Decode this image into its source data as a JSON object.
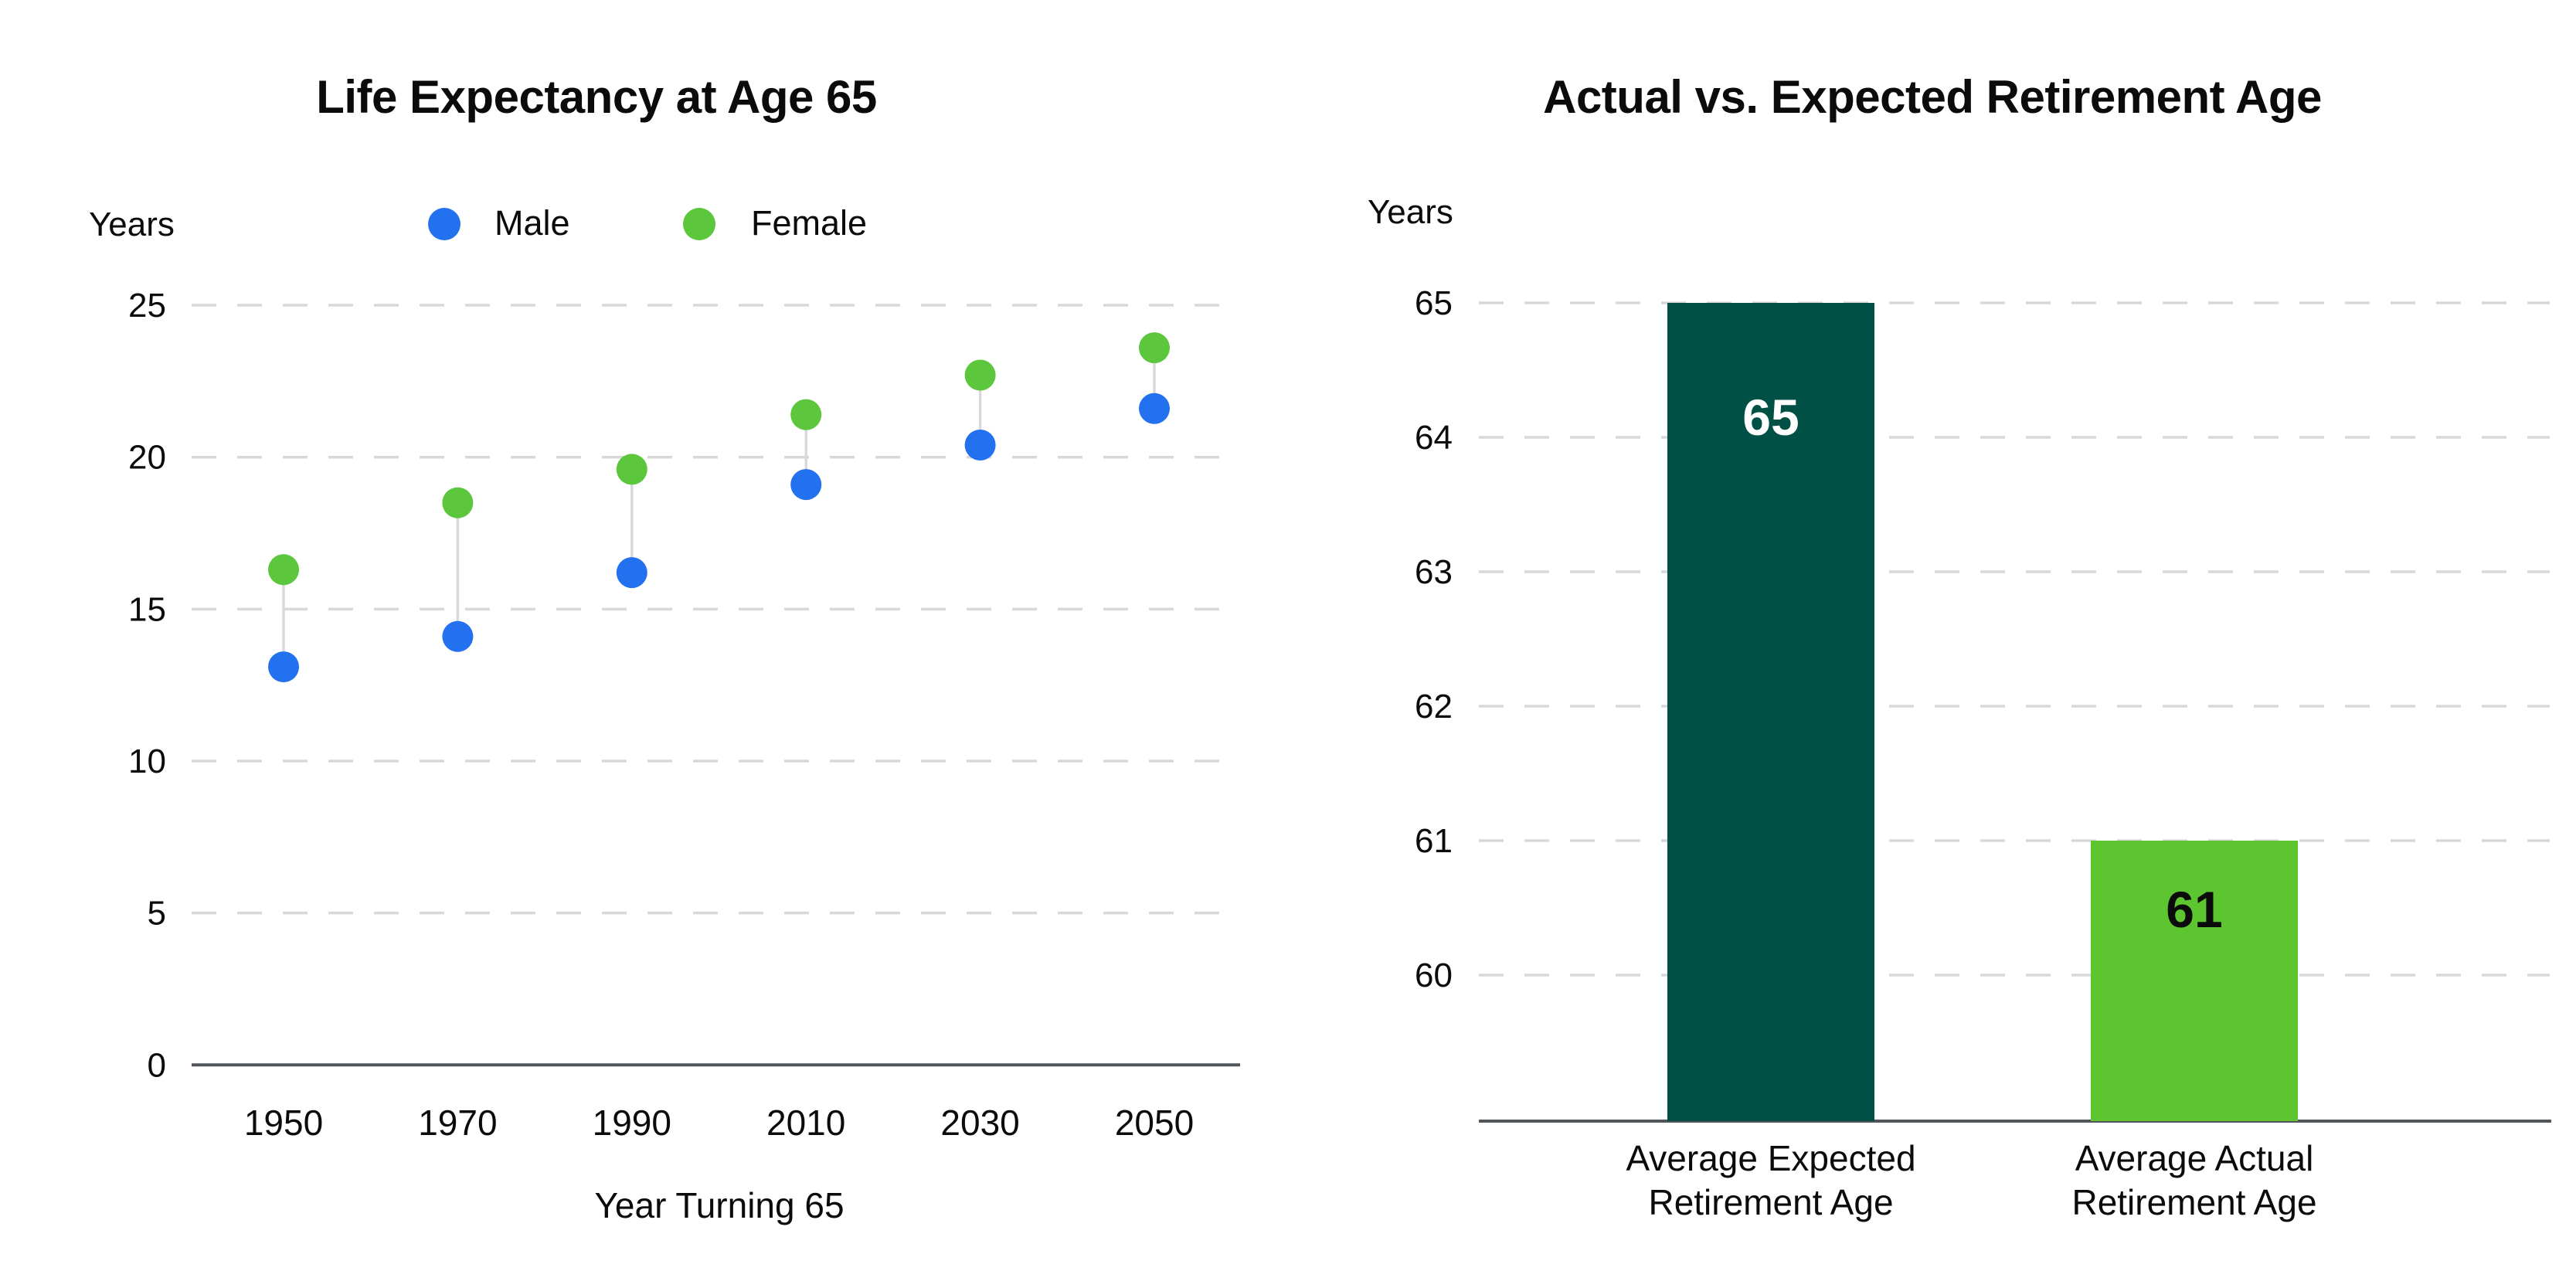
{
  "page_background": "#ffffff",
  "colors": {
    "male_blue": "#2471F0",
    "female_green": "#5CC73C",
    "expected_bar_dark_green": "#005045",
    "actual_bar_light_green": "#5CC530",
    "gridline_gray": "#D8D8D8",
    "axis_line_gray": "#51565C",
    "connector_gray": "#D6D9DD",
    "text_black": "#0B0B0C",
    "bar_label_white": "#FFFFFF"
  },
  "chart_data": [
    {
      "type": "scatter",
      "variant": "dumbbell-dot-plot",
      "title": "Life Expectancy at Age 65",
      "unit_label": "Years",
      "xlabel": "Year Turning 65",
      "categories": [
        "1950",
        "1970",
        "1990",
        "2010",
        "2030",
        "2050"
      ],
      "series": [
        {
          "name": "Male",
          "color": "#2471F0",
          "values": [
            13.1,
            14.1,
            16.2,
            19.1,
            20.4,
            21.6
          ]
        },
        {
          "name": "Female",
          "color": "#5CC73C",
          "values": [
            16.3,
            18.5,
            19.6,
            21.4,
            22.7,
            23.6
          ]
        }
      ],
      "yticks": [
        0,
        5,
        10,
        15,
        20,
        25
      ],
      "ylim": [
        0,
        25
      ],
      "grid": "horizontal-dashed",
      "legend_position": "top"
    },
    {
      "type": "bar",
      "title": "Actual vs. Expected Retirement Age",
      "unit_label": "Years",
      "categories": [
        "Average Expected\nRetirement Age",
        "Average Actual\nRetirement Age"
      ],
      "values": [
        65,
        61
      ],
      "bar_labels": [
        "65",
        "61"
      ],
      "bar_colors": [
        "#005045",
        "#5CC530"
      ],
      "bar_label_colors": [
        "#FFFFFF",
        "#0B0B0C"
      ],
      "yticks": [
        60,
        61,
        62,
        63,
        64,
        65
      ],
      "ylim": [
        58.9,
        65
      ],
      "grid": "horizontal-dashed",
      "legend_position": "none"
    }
  ]
}
